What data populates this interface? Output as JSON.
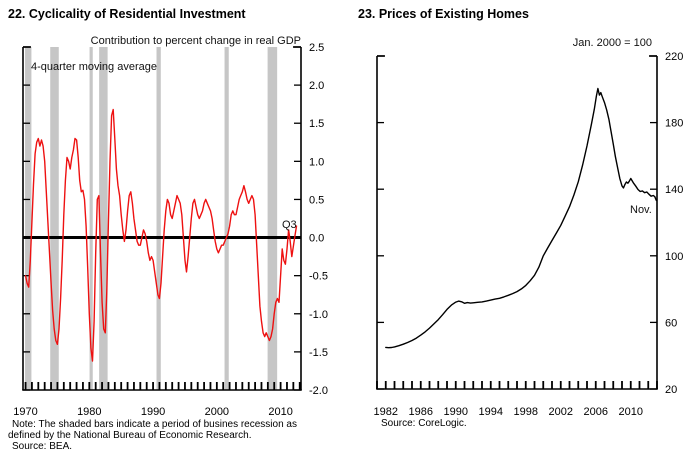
{
  "figure": {
    "background": "#ffffff",
    "text_color": "#000000"
  },
  "chart_data": [
    {
      "type": "line",
      "title": "22. Cyclicality of Residential Investment",
      "subtitle": "Contribution to percent change in real GDP",
      "annotation": "4-quarter moving average",
      "last_point_label": "Q3",
      "note": "Note:  The shaded bars indicate a period of busines recession as defined by the National Bureau of Economic Research.",
      "source": "Source:  BEA.",
      "line_color": "#ee1111",
      "recession_band_color": "#c6c6c6",
      "zero_line": true,
      "x_domain": [
        1969.6,
        2013.2
      ],
      "y_domain": [
        -2.0,
        2.5
      ],
      "y_tick_values": [
        2.5,
        2.0,
        1.5,
        1.0,
        0.5,
        0.0,
        -0.5,
        -1.0,
        -1.5,
        -2.0
      ],
      "y_tick_labels": [
        "2.5",
        "2.0",
        "1.5",
        "1.0",
        "0.5",
        "0.0",
        "-0.5",
        "-1.0",
        "-1.5",
        "-2.0"
      ],
      "x_tick_values": [
        1970,
        1980,
        1990,
        2000,
        2010
      ],
      "x_tick_labels": [
        "1970",
        "1980",
        "1990",
        "2000",
        "2010"
      ],
      "comb_years": {
        "from": 1970,
        "to": 2013
      },
      "recessions": [
        [
          1969.92,
          1970.92
        ],
        [
          1973.87,
          1975.21
        ],
        [
          1980.04,
          1980.54
        ],
        [
          1981.54,
          1982.87
        ],
        [
          1990.54,
          1991.21
        ],
        [
          2001.21,
          2001.87
        ],
        [
          2007.96,
          2009.46
        ]
      ],
      "series": {
        "name": "Residential investment contribution, 4-quarter moving average (percentage points)",
        "start_year": 1970,
        "step_years": 0.25,
        "values": [
          -0.5,
          -0.6,
          -0.65,
          -0.3,
          0.2,
          0.7,
          1.1,
          1.25,
          1.3,
          1.2,
          1.28,
          1.2,
          1.0,
          0.6,
          0.2,
          -0.2,
          -0.6,
          -0.95,
          -1.2,
          -1.35,
          -1.4,
          -1.2,
          -0.8,
          -0.3,
          0.3,
          0.75,
          1.05,
          1.0,
          0.9,
          1.05,
          1.15,
          1.3,
          1.28,
          1.05,
          0.75,
          0.6,
          0.62,
          0.5,
          0.15,
          -0.4,
          -1.0,
          -1.45,
          -1.62,
          -1.1,
          -0.2,
          0.5,
          0.55,
          -0.2,
          -0.85,
          -1.2,
          -1.25,
          -0.7,
          0.2,
          1.0,
          1.6,
          1.68,
          1.3,
          0.9,
          0.68,
          0.55,
          0.3,
          0.1,
          -0.05,
          0.1,
          0.35,
          0.55,
          0.6,
          0.45,
          0.25,
          0.1,
          -0.05,
          -0.1,
          -0.1,
          0.0,
          0.1,
          0.05,
          -0.05,
          -0.2,
          -0.3,
          -0.25,
          -0.3,
          -0.45,
          -0.6,
          -0.75,
          -0.8,
          -0.6,
          -0.25,
          0.1,
          0.35,
          0.5,
          0.45,
          0.3,
          0.25,
          0.35,
          0.45,
          0.55,
          0.5,
          0.45,
          0.3,
          0.0,
          -0.3,
          -0.45,
          -0.25,
          0.0,
          0.25,
          0.45,
          0.5,
          0.4,
          0.3,
          0.25,
          0.3,
          0.35,
          0.45,
          0.5,
          0.45,
          0.4,
          0.35,
          0.25,
          0.1,
          -0.05,
          -0.15,
          -0.2,
          -0.15,
          -0.1,
          -0.1,
          -0.05,
          0.0,
          0.05,
          0.15,
          0.3,
          0.35,
          0.3,
          0.3,
          0.4,
          0.5,
          0.55,
          0.6,
          0.68,
          0.6,
          0.5,
          0.45,
          0.5,
          0.55,
          0.5,
          0.3,
          -0.1,
          -0.5,
          -0.9,
          -1.1,
          -1.25,
          -1.3,
          -1.25,
          -1.3,
          -1.35,
          -1.3,
          -1.2,
          -1.0,
          -0.85,
          -0.8,
          -0.85,
          -0.5,
          -0.15,
          -0.3,
          -0.35,
          -0.15,
          0.1,
          -0.05,
          -0.25,
          -0.12,
          0.02,
          0.15
        ]
      }
    },
    {
      "type": "line",
      "title": "23. Prices of Existing Homes",
      "subtitle": "Jan. 2000 = 100",
      "last_point_label": "Nov.",
      "source": "Source:  CoreLogic.",
      "line_color": "#000000",
      "zero_line": false,
      "x_domain": [
        1981.0,
        2013.0
      ],
      "y_domain": [
        20,
        220
      ],
      "y_tick_values": [
        220,
        180,
        140,
        100,
        60,
        20
      ],
      "y_tick_labels": [
        "220",
        "180",
        "140",
        "100",
        "60",
        "20"
      ],
      "x_tick_values": [
        1982,
        1986,
        1990,
        1994,
        1998,
        2002,
        2006,
        2010
      ],
      "x_tick_labels": [
        "1982",
        "1986",
        "1990",
        "1994",
        "1998",
        "2002",
        "2006",
        "2010"
      ],
      "comb_years": {
        "from": 1981,
        "to": 2013
      },
      "recessions": [],
      "series": {
        "name": "CoreLogic home price index (Jan. 2000 = 100)",
        "points": [
          [
            1982.0,
            45.0
          ],
          [
            1982.33,
            44.8
          ],
          [
            1982.67,
            44.9
          ],
          [
            1983.0,
            45.3
          ],
          [
            1983.5,
            46.0
          ],
          [
            1984.0,
            46.9
          ],
          [
            1984.5,
            47.9
          ],
          [
            1985.0,
            49.1
          ],
          [
            1985.5,
            50.6
          ],
          [
            1986.0,
            52.4
          ],
          [
            1986.5,
            54.3
          ],
          [
            1987.0,
            56.6
          ],
          [
            1987.5,
            59.1
          ],
          [
            1988.0,
            61.7
          ],
          [
            1988.5,
            64.6
          ],
          [
            1989.0,
            67.8
          ],
          [
            1989.5,
            70.4
          ],
          [
            1990.0,
            72.2
          ],
          [
            1990.33,
            72.8
          ],
          [
            1990.67,
            72.4
          ],
          [
            1991.0,
            71.5
          ],
          [
            1991.33,
            71.9
          ],
          [
            1991.67,
            71.6
          ],
          [
            1992.0,
            71.8
          ],
          [
            1992.5,
            72.1
          ],
          [
            1993.0,
            72.3
          ],
          [
            1993.5,
            72.8
          ],
          [
            1994.0,
            73.4
          ],
          [
            1994.5,
            74.0
          ],
          [
            1995.0,
            74.5
          ],
          [
            1995.5,
            75.3
          ],
          [
            1996.0,
            76.3
          ],
          [
            1996.5,
            77.3
          ],
          [
            1997.0,
            78.5
          ],
          [
            1997.5,
            80.1
          ],
          [
            1998.0,
            82.2
          ],
          [
            1998.5,
            85.0
          ],
          [
            1999.0,
            88.3
          ],
          [
            1999.5,
            93.2
          ],
          [
            2000.0,
            100.0
          ],
          [
            2000.5,
            104.6
          ],
          [
            2001.0,
            109.2
          ],
          [
            2001.5,
            113.7
          ],
          [
            2002.0,
            118.3
          ],
          [
            2002.5,
            123.8
          ],
          [
            2003.0,
            129.5
          ],
          [
            2003.5,
            136.5
          ],
          [
            2004.0,
            144.5
          ],
          [
            2004.5,
            154.5
          ],
          [
            2005.0,
            166.0
          ],
          [
            2005.5,
            179.0
          ],
          [
            2005.83,
            188.0
          ],
          [
            2006.08,
            196.0
          ],
          [
            2006.25,
            200.5
          ],
          [
            2006.42,
            196.5
          ],
          [
            2006.58,
            198.0
          ],
          [
            2006.75,
            195.5
          ],
          [
            2007.0,
            192.0
          ],
          [
            2007.25,
            187.5
          ],
          [
            2007.5,
            182.0
          ],
          [
            2007.75,
            174.5
          ],
          [
            2008.0,
            167.0
          ],
          [
            2008.25,
            159.5
          ],
          [
            2008.5,
            153.0
          ],
          [
            2008.75,
            146.5
          ],
          [
            2009.0,
            142.0
          ],
          [
            2009.17,
            140.8
          ],
          [
            2009.33,
            142.8
          ],
          [
            2009.5,
            144.3
          ],
          [
            2009.67,
            143.6
          ],
          [
            2009.83,
            144.8
          ],
          [
            2010.0,
            146.4
          ],
          [
            2010.17,
            145.0
          ],
          [
            2010.33,
            143.6
          ],
          [
            2010.58,
            141.8
          ],
          [
            2010.83,
            139.8
          ],
          [
            2011.08,
            138.6
          ],
          [
            2011.33,
            139.0
          ],
          [
            2011.58,
            137.9
          ],
          [
            2011.83,
            138.3
          ],
          [
            2012.08,
            137.0
          ],
          [
            2012.33,
            135.8
          ],
          [
            2012.58,
            136.2
          ],
          [
            2012.75,
            135.5
          ],
          [
            2012.92,
            133.3
          ]
        ]
      }
    }
  ]
}
